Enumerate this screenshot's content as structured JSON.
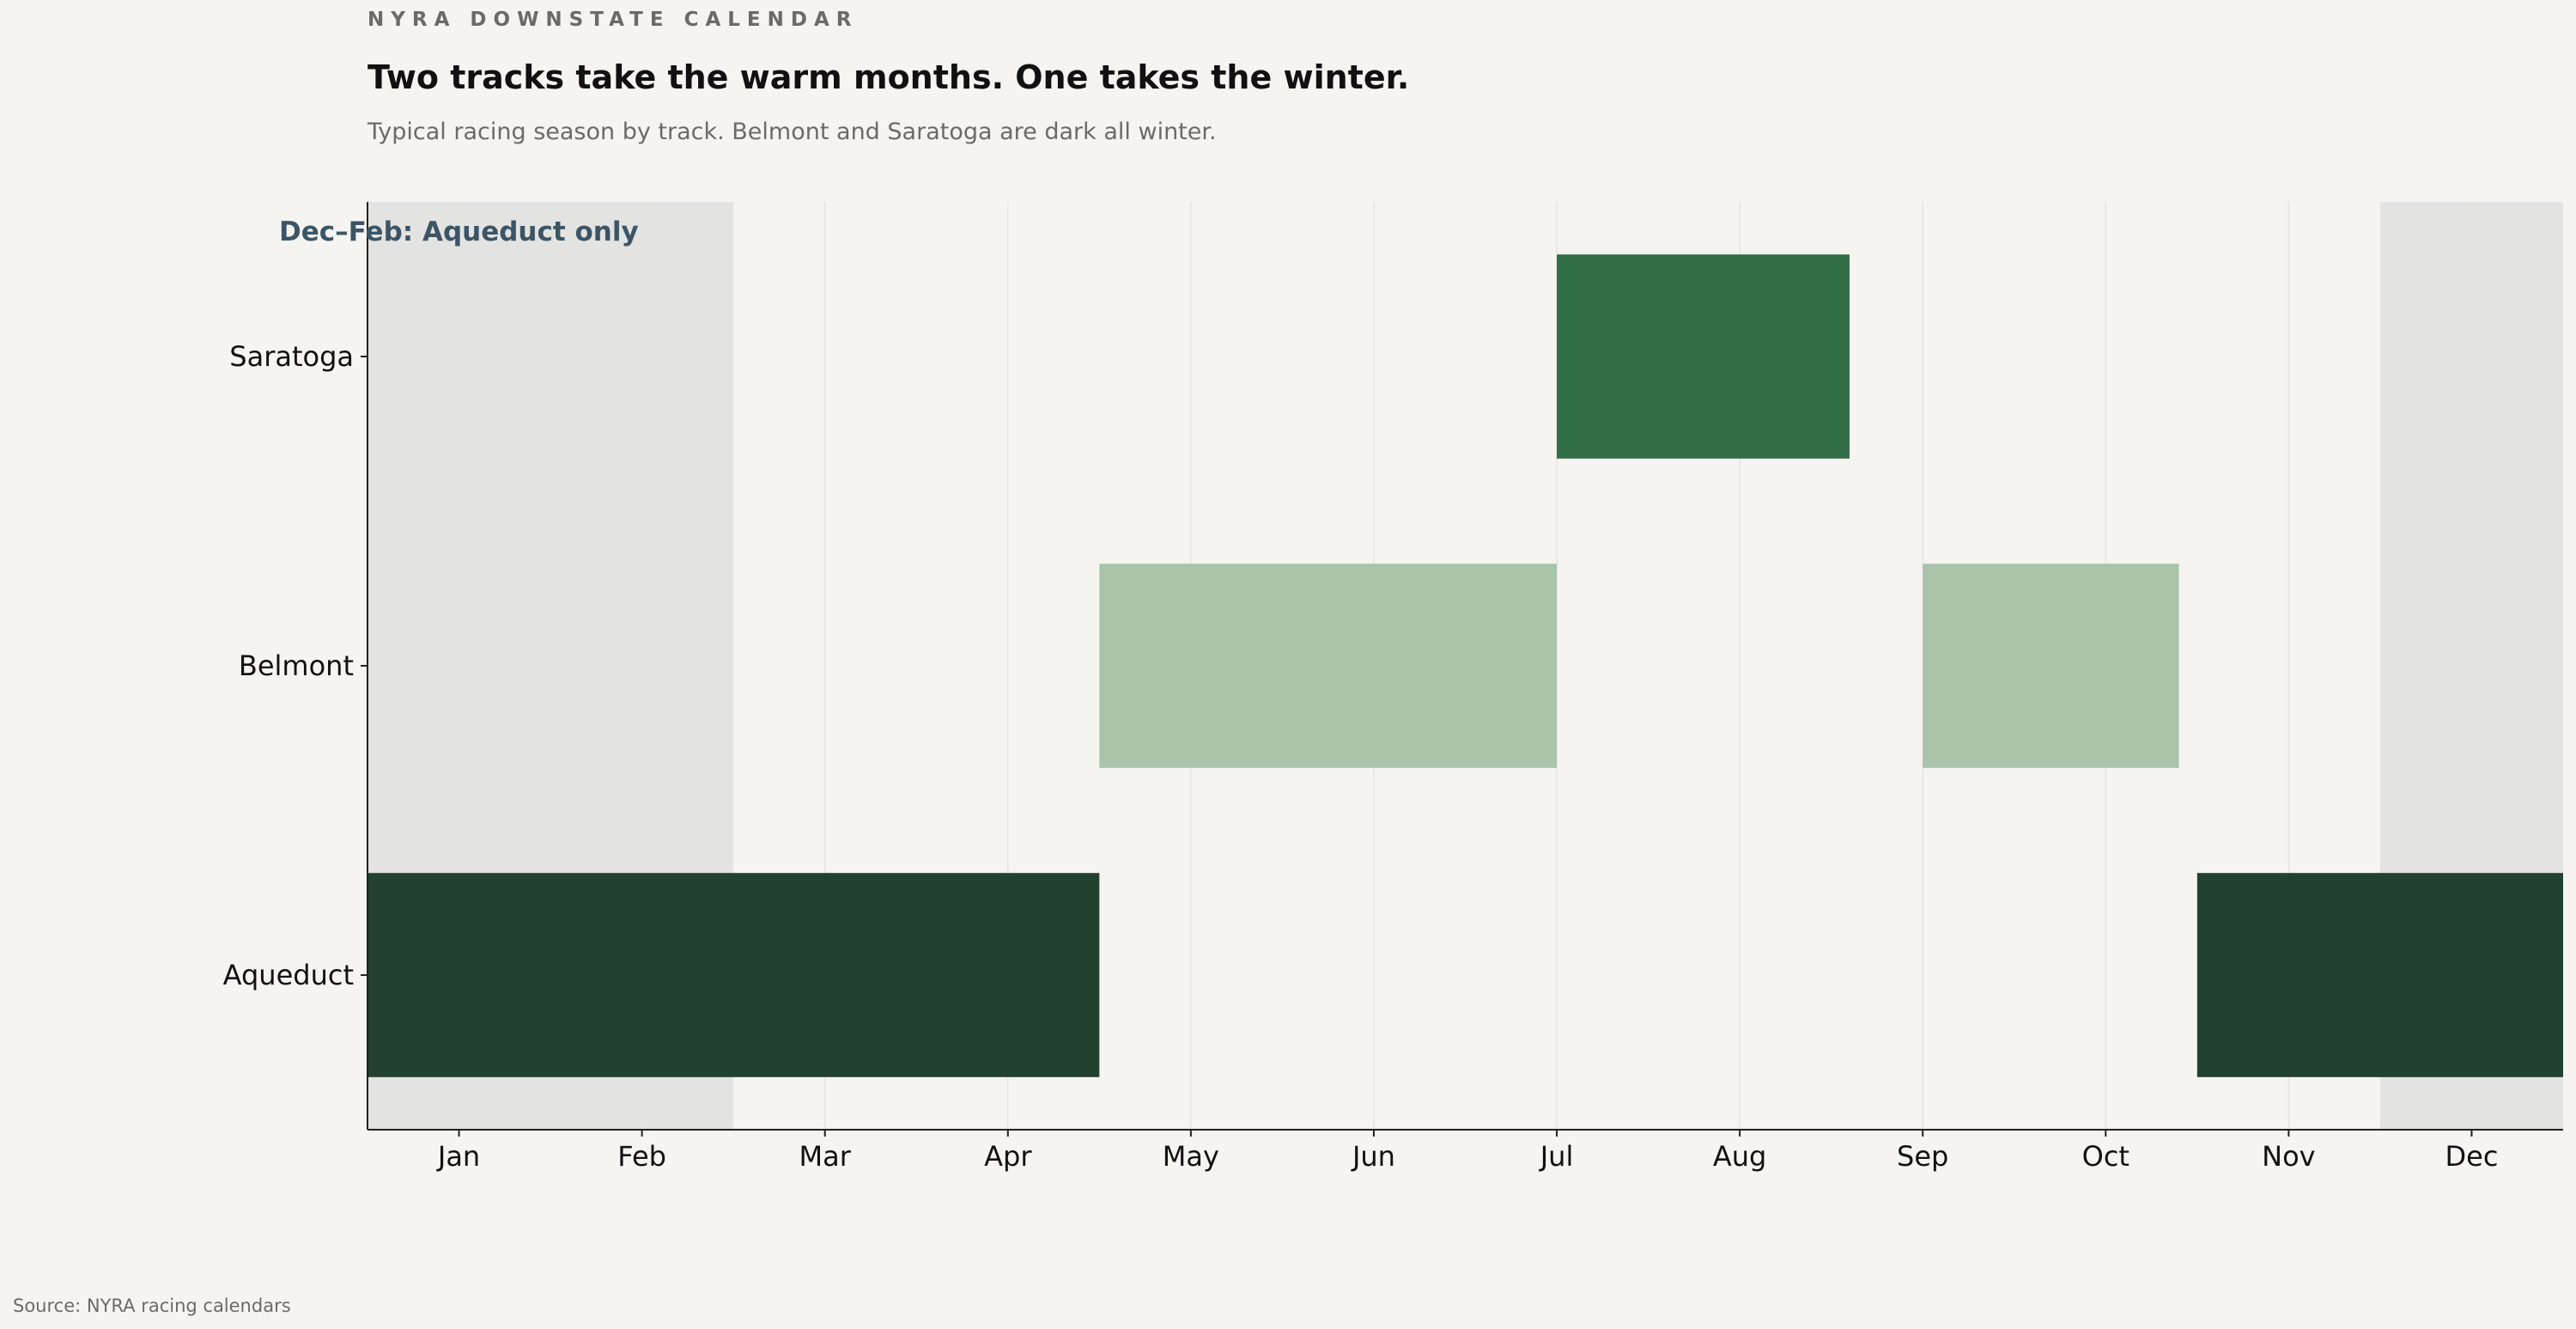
{
  "kicker": "NYRA DOWNSTATE CALENDAR",
  "title": "Two tracks take the warm months. One takes the winter.",
  "subtitle": "Typical racing season by track. Belmont and Saratoga are dark all winter.",
  "source": "Source: NYRA racing calendars",
  "chart_data": {
    "type": "gantt",
    "title": "",
    "xlabel": "",
    "ylabel": "",
    "x_unit": "month index (Jan = 1)",
    "xlim": [
      0.5,
      12.5
    ],
    "x_ticks": [
      {
        "value": 1,
        "label": "Jan"
      },
      {
        "value": 2,
        "label": "Feb"
      },
      {
        "value": 3,
        "label": "Mar"
      },
      {
        "value": 4,
        "label": "Apr"
      },
      {
        "value": 5,
        "label": "May"
      },
      {
        "value": 6,
        "label": "Jun"
      },
      {
        "value": 7,
        "label": "Jul"
      },
      {
        "value": 8,
        "label": "Aug"
      },
      {
        "value": 9,
        "label": "Sep"
      },
      {
        "value": 10,
        "label": "Oct"
      },
      {
        "value": 11,
        "label": "Nov"
      },
      {
        "value": 12,
        "label": "Dec"
      }
    ],
    "grid": "vertical",
    "categories": [
      "Aqueduct",
      "Belmont",
      "Saratoga"
    ],
    "colors": {
      "Aqueduct": "#1e3d2b",
      "Belmont": "#a8c2a9",
      "Saratoga": "#2e6b41",
      "shade": "#e3e3e1",
      "annotation": "#3c5566",
      "grid": "#e4e4e0",
      "axis": "#222222"
    },
    "shaded_regions": [
      {
        "start": 0.5,
        "end": 2.5
      },
      {
        "start": 11.5,
        "end": 12.5
      }
    ],
    "bars": [
      {
        "track": "Aqueduct",
        "start": 0.5,
        "end": 4.5
      },
      {
        "track": "Aqueduct",
        "start": 10.5,
        "end": 12.5
      },
      {
        "track": "Belmont",
        "start": 4.5,
        "end": 7.0
      },
      {
        "track": "Belmont",
        "start": 9.0,
        "end": 10.4
      },
      {
        "track": "Saratoga",
        "start": 7.0,
        "end": 8.6
      }
    ],
    "annotation": {
      "text": "Dec–Feb: Aqueduct only"
    }
  }
}
